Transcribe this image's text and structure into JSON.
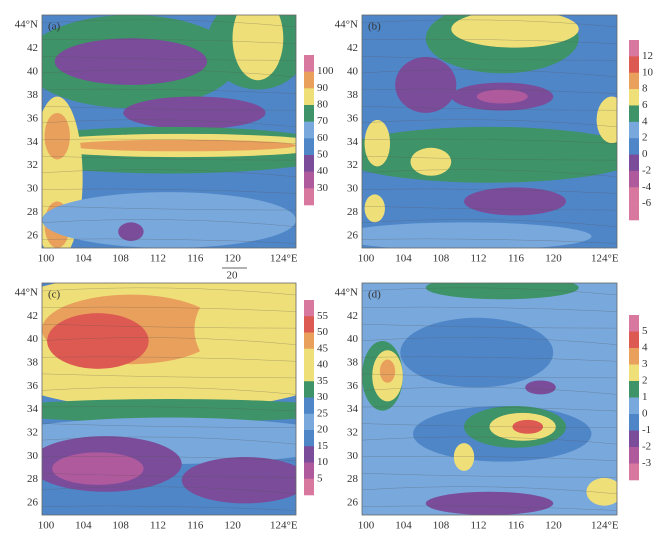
{
  "panels": [
    {
      "label": "(a)",
      "y_ticks": [
        "44°N",
        "42",
        "40",
        "38",
        "36",
        "34",
        "32",
        "30",
        "28",
        "26"
      ],
      "x_ticks": [
        "100",
        "104",
        "108",
        "112",
        "116",
        "120",
        "124°E"
      ],
      "colorbar": [
        "100",
        "90",
        "80",
        "70",
        "60",
        "50",
        "40",
        "30"
      ],
      "vector_scale": "20"
    },
    {
      "label": "(b)",
      "y_ticks": [
        "44°N",
        "42",
        "40",
        "38",
        "36",
        "34",
        "32",
        "30",
        "28",
        "26"
      ],
      "x_ticks": [
        "100",
        "104",
        "108",
        "112",
        "116",
        "120",
        "124°E"
      ],
      "colorbar": [
        "12",
        "10",
        "8",
        "6",
        "4",
        "2",
        "0",
        "-2",
        "-4",
        "-6"
      ]
    },
    {
      "label": "(c)",
      "y_ticks": [
        "44°N",
        "42",
        "40",
        "38",
        "36",
        "34",
        "32",
        "30",
        "28",
        "26"
      ],
      "x_ticks": [
        "100",
        "104",
        "108",
        "112",
        "116",
        "120",
        "124°E"
      ],
      "colorbar": [
        "55",
        "50",
        "45",
        "40",
        "35",
        "30",
        "25",
        "20",
        "15",
        "10",
        "5"
      ]
    },
    {
      "label": "(d)",
      "y_ticks": [
        "44°N",
        "42",
        "40",
        "38",
        "36",
        "34",
        "32",
        "30",
        "28",
        "26"
      ],
      "x_ticks": [
        "100",
        "104",
        "108",
        "112",
        "116",
        "120",
        "124°E"
      ],
      "colorbar": [
        "5",
        "4",
        "3",
        "2",
        "1",
        "0",
        "-1",
        "-2",
        "-3"
      ]
    }
  ]
}
